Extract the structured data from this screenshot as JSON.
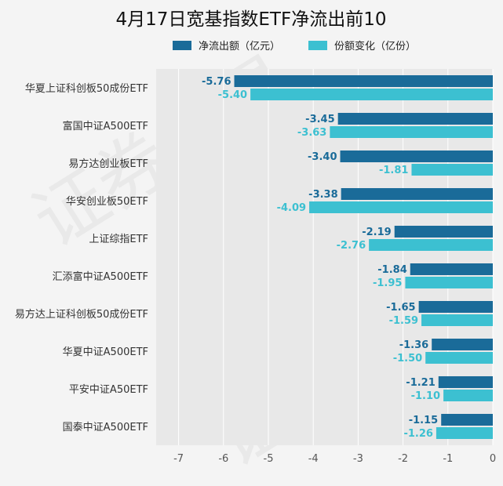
{
  "chart_data": {
    "type": "bar",
    "orientation": "horizontal",
    "title": "4月17日宽基指数ETF净流出前10",
    "categories": [
      "华夏上证科创板50成份ETF",
      "富国中证A500ETF",
      "易方达创业板ETF",
      "华安创业板50ETF",
      "上证综指ETF",
      "汇添富中证A500ETF",
      "易方达上证科创板50成份ETF",
      "华夏中证A500ETF",
      "平安中证A50ETF",
      "国泰中证A500ETF"
    ],
    "series": [
      {
        "name": "净流出额（亿元）",
        "color": "#1a6b99",
        "values": [
          -5.76,
          -3.45,
          -3.4,
          -3.38,
          -2.19,
          -1.84,
          -1.65,
          -1.36,
          -1.21,
          -1.15
        ]
      },
      {
        "name": "份额变化（亿份）",
        "color": "#3cc0d1",
        "values": [
          -5.4,
          -3.63,
          -1.81,
          -4.09,
          -2.76,
          -1.95,
          -1.59,
          -1.5,
          -1.1,
          -1.26
        ]
      }
    ],
    "xlim": [
      -7.5,
      0
    ],
    "xticks": [
      -7,
      -6,
      -5,
      -4,
      -3,
      -2,
      -1,
      0
    ],
    "grid": true,
    "legend_position": "top"
  },
  "watermark": "证券之星"
}
